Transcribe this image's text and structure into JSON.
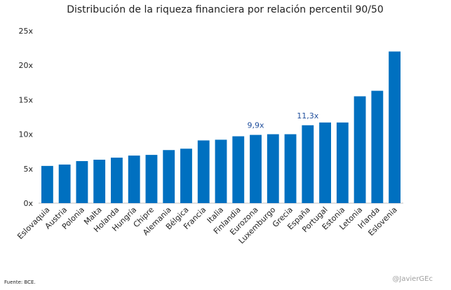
{
  "chart_data": {
    "type": "bar",
    "title": "Distribución de la riqueza financiera por relación percentil 90/50",
    "categories": [
      "Eslovaquia",
      "Austria",
      "Polonia",
      "Malta",
      "Holanda",
      "Hungría",
      "Chipre",
      "Alemania",
      "Bélgica",
      "Francia",
      "Italia",
      "Finlandia",
      "Eurozona",
      "Luxemburgo",
      "Grecia",
      "España",
      "Portugal",
      "Estonia",
      "Letonia",
      "Irlanda",
      "Eslovenia"
    ],
    "values": [
      5.4,
      5.6,
      6.1,
      6.3,
      6.6,
      6.9,
      7.0,
      7.7,
      7.9,
      9.1,
      9.2,
      9.7,
      9.9,
      10.0,
      10.0,
      11.3,
      11.7,
      11.7,
      15.5,
      16.3,
      22.0
    ],
    "ylim": [
      0,
      25
    ],
    "yticks": [
      0,
      5,
      10,
      15,
      20,
      25
    ],
    "ytick_labels": [
      "0x",
      "5x",
      "10x",
      "15x",
      "20x",
      "25x"
    ],
    "annotations": [
      {
        "category": "Eurozona",
        "text": "9,9x"
      },
      {
        "category": "España",
        "text": "11,3x"
      }
    ],
    "grid": false,
    "legend": "none",
    "bar_color": "#0070c0",
    "annotation_color": "#1f4e9c"
  },
  "footer": {
    "source": "Fuente: BCE.",
    "credit": "@JavierGEc"
  }
}
